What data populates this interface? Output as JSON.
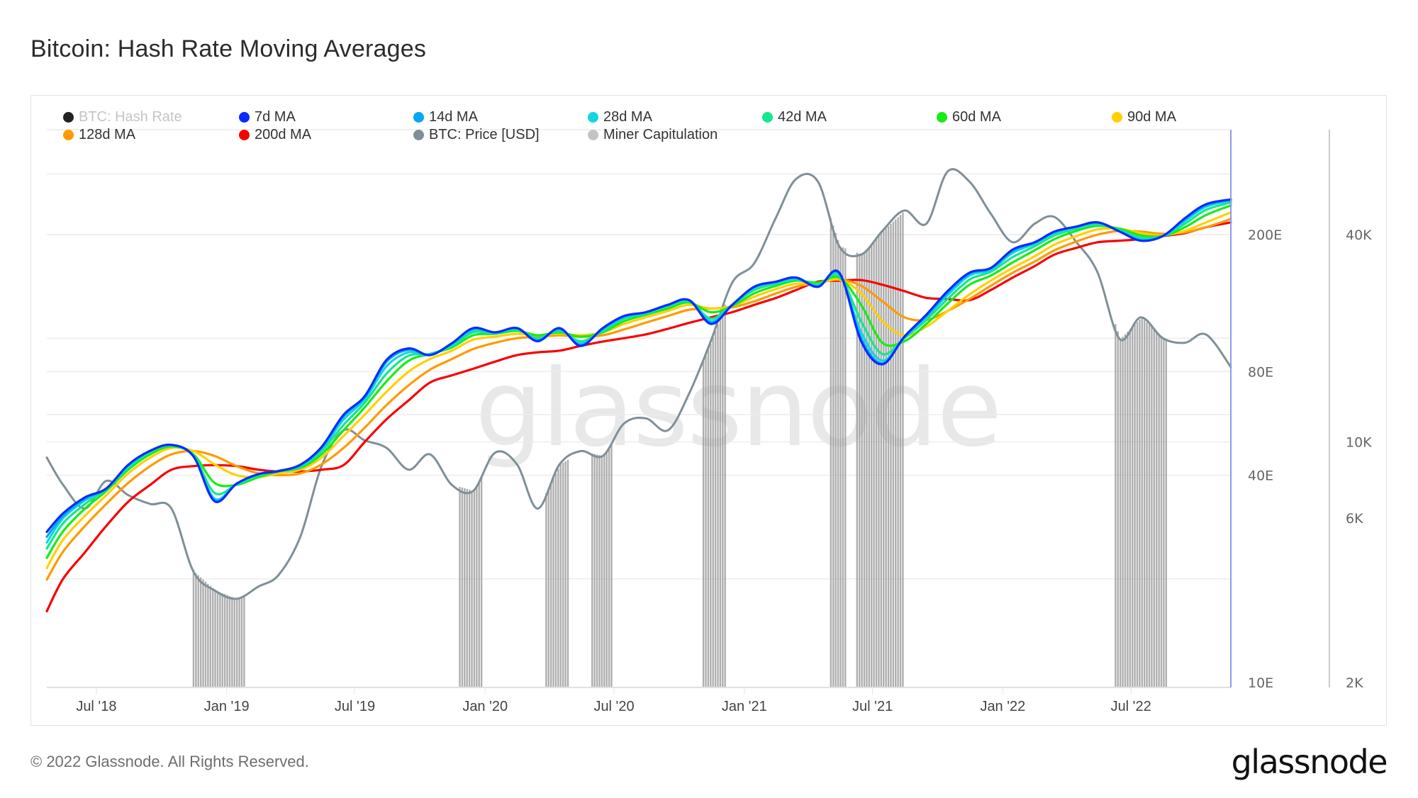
{
  "title": "Bitcoin: Hash Rate Moving Averages",
  "footer": {
    "copyright": "© 2022 Glassnode. All Rights Reserved.",
    "logo": "glassnode"
  },
  "watermark": "glassnode",
  "legend": [
    {
      "label": "BTC: Hash Rate",
      "color": "#222222",
      "disabled": true
    },
    {
      "label": "7d MA",
      "color": "#0a2bff"
    },
    {
      "label": "14d MA",
      "color": "#06a6f2"
    },
    {
      "label": "28d MA",
      "color": "#11d6e0"
    },
    {
      "label": "42d MA",
      "color": "#12e88e"
    },
    {
      "label": "60d MA",
      "color": "#17ec17"
    },
    {
      "label": "90d MA",
      "color": "#ffd000"
    },
    {
      "label": "128d MA",
      "color": "#ff9a00"
    },
    {
      "label": "200d MA",
      "color": "#f70000"
    },
    {
      "label": "BTC: Price [USD]",
      "color": "#7f8f98"
    },
    {
      "label": "Miner Capitulation",
      "color": "#c4c4c4"
    }
  ],
  "chart_data": {
    "type": "line",
    "title": "Bitcoin: Hash Rate Moving Averages",
    "x_domain": [
      "2018-04-22",
      "2022-11-19"
    ],
    "x_ticks": [
      {
        "date": "2018-07-01",
        "label": "Jul '18"
      },
      {
        "date": "2019-01-01",
        "label": "Jan '19"
      },
      {
        "date": "2019-07-01",
        "label": "Jul '19"
      },
      {
        "date": "2020-01-01",
        "label": "Jan '20"
      },
      {
        "date": "2020-07-01",
        "label": "Jul '20"
      },
      {
        "date": "2021-01-01",
        "label": "Jan '21"
      },
      {
        "date": "2021-07-01",
        "label": "Jul '21"
      },
      {
        "date": "2022-01-01",
        "label": "Jan '22"
      },
      {
        "date": "2022-07-01",
        "label": "Jul '22"
      }
    ],
    "y_left": {
      "label": "Hash Rate",
      "unit": "EH/s",
      "scale": "log",
      "range": [
        10,
        400
      ],
      "ticks": [
        {
          "value": 200,
          "label": "200E"
        },
        {
          "value": 80,
          "label": "80E"
        },
        {
          "value": 40,
          "label": "40E"
        },
        {
          "value": 10,
          "label": "10E"
        }
      ],
      "grid_values": [
        20,
        40,
        50,
        60,
        80,
        100,
        200,
        300,
        400
      ]
    },
    "y_right": {
      "label": "BTC: Price [USD]",
      "scale": "log",
      "range": [
        2000,
        80000
      ],
      "ticks": [
        {
          "value": 40000,
          "label": "40K"
        },
        {
          "value": 10000,
          "label": "10K"
        },
        {
          "value": 6000,
          "label": "6K"
        },
        {
          "value": 2000,
          "label": "2K"
        }
      ]
    },
    "dates": [
      "2018-04-22",
      "2018-05-15",
      "2018-06-15",
      "2018-07-15",
      "2018-08-15",
      "2018-09-15",
      "2018-10-15",
      "2018-11-15",
      "2018-12-15",
      "2019-01-15",
      "2019-02-15",
      "2019-03-15",
      "2019-04-15",
      "2019-05-15",
      "2019-06-15",
      "2019-07-15",
      "2019-08-15",
      "2019-09-15",
      "2019-10-15",
      "2019-11-15",
      "2019-12-15",
      "2020-01-15",
      "2020-02-15",
      "2020-03-15",
      "2020-04-15",
      "2020-05-15",
      "2020-06-15",
      "2020-07-15",
      "2020-08-15",
      "2020-09-15",
      "2020-10-15",
      "2020-11-15",
      "2020-12-15",
      "2021-01-15",
      "2021-02-15",
      "2021-03-15",
      "2021-04-15",
      "2021-05-15",
      "2021-06-15",
      "2021-07-15",
      "2021-08-15",
      "2021-09-15",
      "2021-10-15",
      "2021-11-15",
      "2021-12-15",
      "2022-01-15",
      "2022-02-15",
      "2022-03-15",
      "2022-04-15",
      "2022-05-15",
      "2022-06-15",
      "2022-07-15",
      "2022-08-15",
      "2022-09-15",
      "2022-10-15",
      "2022-11-19"
    ],
    "series": [
      {
        "name": "200d MA",
        "axis": "left",
        "color": "#f70000",
        "values": [
          16.1,
          20,
          23.9,
          28.5,
          33.5,
          37.5,
          41.5,
          42.5,
          42.8,
          42.5,
          41.5,
          41.0,
          41.0,
          41.5,
          42.8,
          50,
          58.2,
          66,
          74.3,
          78,
          81.5,
          85.5,
          89.3,
          91,
          92,
          95,
          97.8,
          100,
          102.6,
          106.5,
          110.8,
          115,
          119,
          125,
          131,
          138,
          146,
          147,
          147.5,
          143,
          137,
          131,
          130,
          129,
          138,
          150,
          162,
          175,
          183,
          190,
          192,
          194,
          198,
          202,
          210,
          217
        ]
      },
      {
        "name": "128d MA",
        "axis": "left",
        "color": "#ff9a00",
        "values": [
          19.9,
          24,
          28.5,
          33,
          38,
          42.5,
          46,
          47,
          45.5,
          42.5,
          40.5,
          40,
          40.5,
          43,
          48,
          55,
          64,
          73,
          81,
          87,
          93,
          97,
          100,
          101,
          102,
          101,
          102,
          106,
          111,
          116,
          121,
          122,
          123,
          128,
          135,
          141,
          145,
          148,
          142,
          128,
          115,
          113,
          120,
          130,
          142,
          155,
          167,
          180,
          191,
          200,
          205,
          204,
          201,
          203,
          210,
          222
        ]
      },
      {
        "name": "90d MA",
        "axis": "left",
        "color": "#ffd000",
        "values": [
          21.5,
          26,
          30.5,
          35,
          40.5,
          45,
          48,
          47,
          43,
          40,
          39.5,
          40.5,
          41.5,
          45,
          52,
          60,
          70,
          80,
          87,
          92,
          99,
          101,
          103,
          102,
          103,
          102,
          104,
          110,
          115,
          120,
          125,
          122,
          124,
          132,
          139,
          144,
          144,
          148,
          135,
          112,
          102,
          108,
          120,
          134,
          147,
          160,
          173,
          187,
          198,
          207,
          208,
          202,
          199,
          205,
          217,
          232
        ]
      },
      {
        "name": "60d MA",
        "axis": "left",
        "color": "#17ec17",
        "values": [
          23,
          27.5,
          32,
          36,
          41.5,
          46,
          48.5,
          46,
          38,
          37.5,
          39.5,
          41,
          42,
          46,
          54,
          63,
          75,
          86,
          90,
          94,
          102,
          103,
          105,
          102,
          104,
          101,
          104,
          112,
          117,
          122,
          127,
          119,
          124,
          135,
          142,
          147,
          145,
          150,
          125,
          97,
          98,
          110,
          126,
          143,
          152,
          166,
          180,
          194,
          205,
          212,
          208,
          199,
          198,
          210,
          228,
          243
        ]
      },
      {
        "name": "42d MA",
        "axis": "left",
        "color": "#12e88e",
        "values": [
          24.5,
          29,
          33,
          36.5,
          42,
          46.8,
          48.8,
          45.7,
          35.5,
          37.6,
          40,
          41.2,
          42.4,
          47,
          56,
          65,
          79,
          89,
          90,
          95,
          104,
          103.5,
          106,
          100,
          105,
          98,
          105,
          114,
          118,
          124,
          128,
          114,
          125,
          138,
          144,
          148,
          143,
          152,
          112,
          90,
          100,
          113,
          130,
          148,
          156,
          172,
          185,
          199,
          208,
          214,
          206,
          196,
          198,
          215,
          236,
          248
        ]
      },
      {
        "name": "28d MA",
        "axis": "left",
        "color": "#11d6e0",
        "values": [
          25.5,
          30,
          33.8,
          36.6,
          42.5,
          47,
          49,
          45.5,
          34.2,
          37.7,
          40.2,
          41.1,
          42.6,
          47.6,
          58,
          66.5,
          83,
          91,
          89.8,
          96,
          105.5,
          104,
          106.5,
          99,
          106,
          96.5,
          106,
          115,
          118.5,
          124.5,
          128.5,
          112,
          125,
          140,
          145,
          149,
          142,
          153.5,
          104,
          86,
          100.5,
          115,
          133.5,
          152,
          158,
          177,
          188,
          202,
          210,
          216,
          205,
          194,
          198,
          219,
          241,
          251
        ]
      },
      {
        "name": "14d MA",
        "axis": "left",
        "color": "#06a6f2",
        "values": [
          26.5,
          30.5,
          34.2,
          36.6,
          42.8,
          47.1,
          49,
          45.4,
          33.8,
          37.8,
          40.3,
          41.1,
          42.8,
          48,
          59.3,
          67.4,
          85.5,
          92.6,
          89.5,
          96.4,
          106.5,
          104,
          107,
          98.5,
          106.5,
          95.5,
          106.5,
          115.5,
          119,
          125,
          129,
          111,
          125,
          141,
          146,
          150,
          141.5,
          154.5,
          100,
          84.5,
          100.8,
          116,
          135.5,
          154,
          159.5,
          179.5,
          189.5,
          203.5,
          211,
          217,
          204.5,
          192.5,
          198,
          221.5,
          243.5,
          252.5
        ]
      },
      {
        "name": "7d MA",
        "axis": "left",
        "color": "#0a2bff",
        "values": [
          27.4,
          31,
          34.5,
          36.6,
          42.9,
          47.1,
          49.0,
          45.4,
          33.6,
          37.8,
          40.3,
          41.1,
          42.9,
          48.3,
          59.9,
          67.9,
          86.6,
          93.4,
          89.3,
          96.7,
          107,
          104,
          107,
          98,
          107,
          95,
          107,
          116,
          119,
          125,
          129,
          110,
          125,
          141,
          146,
          150,
          141,
          155,
          98,
          84,
          101,
          117,
          137,
          155,
          160,
          181,
          190,
          204,
          211,
          217,
          204,
          192,
          198,
          223,
          245,
          253
        ]
      },
      {
        "name": "BTC: Price [USD]",
        "axis": "right",
        "color": "#7f8f98",
        "values": [
          9000,
          7500,
          6400,
          7700,
          7000,
          6600,
          6400,
          4200,
          3700,
          3500,
          3800,
          4100,
          5300,
          8500,
          10800,
          10100,
          9600,
          8300,
          9200,
          7500,
          7200,
          9300,
          8600,
          6400,
          8600,
          9400,
          9100,
          11300,
          11700,
          10800,
          13800,
          19700,
          29000,
          33000,
          45000,
          58000,
          57000,
          37000,
          35000,
          41000,
          47000,
          43000,
          61000,
          57000,
          46000,
          38000,
          43000,
          45000,
          38000,
          31000,
          19900,
          23000,
          20000,
          19400,
          20500,
          16500
        ]
      }
    ],
    "miner_capitulation": [
      {
        "start": "2018-11-14",
        "end": "2019-01-25"
      },
      {
        "start": "2019-11-25",
        "end": "2019-12-26"
      },
      {
        "start": "2020-03-26",
        "end": "2020-04-27"
      },
      {
        "start": "2020-05-30",
        "end": "2020-06-28"
      },
      {
        "start": "2020-11-03",
        "end": "2020-12-07"
      },
      {
        "start": "2021-05-02",
        "end": "2021-05-23"
      },
      {
        "start": "2021-06-08",
        "end": "2021-08-13"
      },
      {
        "start": "2022-06-08",
        "end": "2022-08-21"
      }
    ],
    "grid": true,
    "legend_position": "top-left"
  }
}
